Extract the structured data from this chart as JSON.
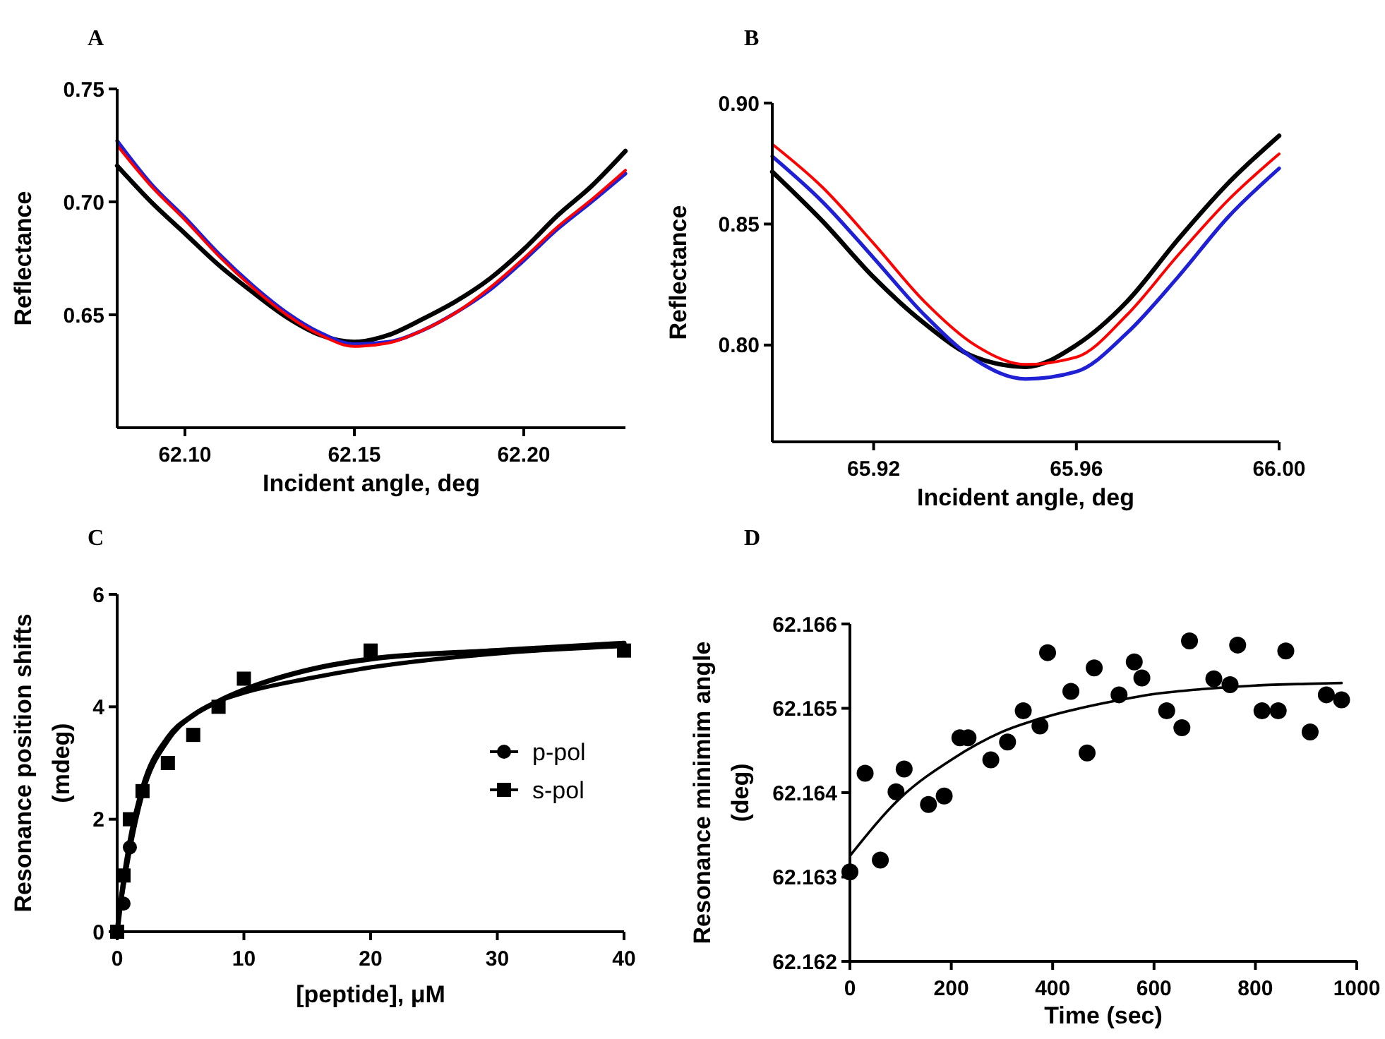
{
  "chart_data": [
    {
      "type": "line",
      "title": "A",
      "xlabel": "Incident angle, deg",
      "ylabel": "Reflectance",
      "xlim": [
        62.08,
        62.23
      ],
      "xticks": [
        {
          "value": 62.1,
          "label": "62.10"
        },
        {
          "value": 62.15,
          "label": "62.15"
        },
        {
          "value": 62.2,
          "label": "62.20"
        }
      ],
      "ylim": [
        0.6,
        0.75
      ],
      "yticks": [
        {
          "value": 0.65,
          "label": "0.65"
        },
        {
          "value": 0.7,
          "label": "0.70"
        },
        {
          "value": 0.75,
          "label": "0.75"
        }
      ],
      "x": [
        62.08,
        62.09,
        62.1,
        62.11,
        62.12,
        62.13,
        62.14,
        62.15,
        62.16,
        62.17,
        62.18,
        62.19,
        62.2,
        62.21,
        62.22,
        62.23
      ],
      "series": [
        {
          "color": "#000000",
          "values": [
            0.716,
            0.7,
            0.686,
            0.672,
            0.66,
            0.649,
            0.641,
            0.638,
            0.641,
            0.648,
            0.656,
            0.666,
            0.679,
            0.694,
            0.707,
            0.7225
          ]
        },
        {
          "color": "#1f1fd6",
          "values": [
            0.727,
            0.708,
            0.693,
            0.677,
            0.663,
            0.651,
            0.642,
            0.637,
            0.638,
            0.643,
            0.651,
            0.661,
            0.674,
            0.688,
            0.7,
            0.7125
          ]
        },
        {
          "color": "#ff0000",
          "values": [
            0.725,
            0.707,
            0.692,
            0.676,
            0.662,
            0.65,
            0.641,
            0.636,
            0.6375,
            0.643,
            0.651,
            0.662,
            0.675,
            0.689,
            0.701,
            0.714
          ]
        }
      ]
    },
    {
      "type": "line",
      "title": "B",
      "xlabel": "Incident angle, deg",
      "ylabel": "Reflectance",
      "xlim": [
        65.9,
        66.0
      ],
      "xticks": [
        {
          "value": 65.92,
          "label": "65.92"
        },
        {
          "value": 65.96,
          "label": "65.96"
        },
        {
          "value": 66.0,
          "label": "66.00"
        }
      ],
      "ylim": [
        0.76,
        0.9
      ],
      "yticks": [
        {
          "value": 0.8,
          "label": "0.80"
        },
        {
          "value": 0.85,
          "label": "0.85"
        },
        {
          "value": 0.9,
          "label": "0.90"
        }
      ],
      "x": [
        65.9,
        65.91,
        65.92,
        65.93,
        65.94,
        65.95,
        65.96,
        65.97,
        65.98,
        65.99,
        66.0
      ],
      "series": [
        {
          "color": "#000000",
          "values": [
            0.8716,
            0.851,
            0.828,
            0.809,
            0.795,
            0.791,
            0.8,
            0.818,
            0.8435,
            0.867,
            0.8865
          ]
        },
        {
          "color": "#1f1fd6",
          "values": [
            0.878,
            0.859,
            0.836,
            0.8125,
            0.794,
            0.786,
            0.789,
            0.805,
            0.828,
            0.853,
            0.873
          ]
        },
        {
          "color": "#ff0000",
          "values": [
            0.883,
            0.865,
            0.842,
            0.818,
            0.8,
            0.792,
            0.795,
            0.8125,
            0.837,
            0.86,
            0.879
          ]
        }
      ]
    },
    {
      "type": "scatter",
      "title": "C",
      "xlabel": "[peptide], μM",
      "ylabel": "Resonance position shifts\n(mdeg)",
      "xlim": [
        0,
        40
      ],
      "xticks": [
        0,
        10,
        20,
        30,
        40
      ],
      "ylim": [
        0,
        6
      ],
      "yticks": [
        0,
        2,
        4,
        6
      ],
      "legend": "right",
      "series": [
        {
          "type": "line",
          "color": "#000000",
          "x": [
            0,
            0.5,
            1,
            2,
            4,
            6,
            8,
            10,
            15,
            20,
            30,
            40
          ],
          "values": [
            0,
            0.9,
            1.6,
            2.55,
            3.45,
            3.85,
            4.1,
            4.3,
            4.65,
            4.85,
            5.0,
            5.13
          ]
        },
        {
          "type": "line",
          "color": "#000000",
          "x": [
            0.25,
            0.5,
            1,
            2,
            4,
            6,
            8,
            10,
            15,
            20,
            30,
            40
          ],
          "values": [
            0.45,
            0.8,
            1.45,
            2.45,
            3.4,
            3.85,
            4.1,
            4.25,
            4.5,
            4.7,
            4.95,
            5.08
          ]
        },
        {
          "name": "p-pol",
          "color": "#000000",
          "marker": "circle",
          "x": [
            0.5,
            1
          ],
          "values": [
            0.5,
            1.5
          ]
        },
        {
          "name": "s-pol",
          "color": "#000000",
          "marker": "square",
          "x": [
            0,
            0.5,
            1,
            2,
            4,
            6,
            8,
            10,
            20,
            40
          ],
          "values": [
            0,
            1,
            2,
            2.5,
            3,
            3.5,
            4,
            4.5,
            5,
            5
          ]
        }
      ]
    },
    {
      "type": "scatter",
      "title": "D",
      "xlabel": "Time (sec)",
      "ylabel": "Resonance minimim angle\n(deg)",
      "xlim": [
        0,
        1000
      ],
      "xticks": [
        0,
        200,
        400,
        600,
        800,
        1000
      ],
      "ylim": [
        62.162,
        62.166
      ],
      "yticks": [
        62.162,
        62.163,
        62.164,
        62.165,
        62.166
      ],
      "series": [
        {
          "color": "#000000",
          "marker": "circle",
          "x": [
            0,
            30,
            60,
            91,
            107,
            155,
            186,
            217,
            233,
            278,
            311,
            342,
            375,
            390,
            436,
            468,
            482,
            531,
            561,
            576,
            625,
            655,
            670,
            718,
            750,
            765,
            813,
            845,
            860,
            908,
            940,
            970
          ],
          "values": [
            62.16306,
            62.16423,
            62.1632,
            62.16401,
            62.16428,
            62.16386,
            62.16396,
            62.16465,
            62.16465,
            62.16439,
            62.1646,
            62.16497,
            62.16479,
            62.16566,
            62.1652,
            62.16447,
            62.16548,
            62.16516,
            62.16555,
            62.16536,
            62.16497,
            62.16477,
            62.1658,
            62.16535,
            62.16528,
            62.16575,
            62.16497,
            62.16497,
            62.16568,
            62.16472,
            62.16516,
            62.1651
          ]
        },
        {
          "type": "line",
          "color": "#000000",
          "x": [
            0,
            100,
            200,
            300,
            400,
            500,
            600,
            700,
            800,
            900,
            970
          ],
          "values": [
            62.16325,
            62.16394,
            62.16439,
            62.16472,
            62.16492,
            62.16506,
            62.16517,
            62.16523,
            62.16527,
            62.16529,
            62.1653
          ]
        }
      ]
    }
  ]
}
